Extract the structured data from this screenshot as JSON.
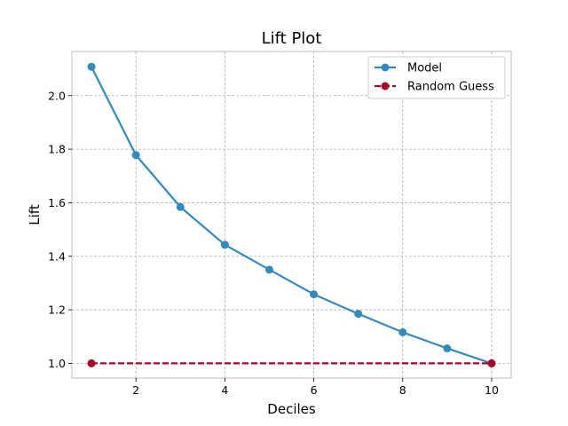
{
  "chart_data": {
    "type": "line",
    "title": "Lift Plot",
    "xlabel": "Deciles",
    "ylabel": "Lift",
    "xlim": [
      0.56,
      10.44
    ],
    "ylim": [
      0.945,
      2.165
    ],
    "xticks": [
      2,
      4,
      6,
      8,
      10
    ],
    "yticks": [
      1.0,
      1.2,
      1.4,
      1.6,
      1.8,
      2.0
    ],
    "grid": true,
    "legend_position": "top-right",
    "x": [
      1,
      2,
      3,
      4,
      5,
      6,
      7,
      8,
      9,
      10
    ],
    "series": [
      {
        "name": "Model",
        "color": "#348abd",
        "linestyle": "solid",
        "marker": "circle",
        "values": [
          2.108,
          1.778,
          1.584,
          1.443,
          1.35,
          1.258,
          1.185,
          1.116,
          1.056,
          1.0
        ]
      },
      {
        "name": "Random Guess",
        "color": "#a60628",
        "linestyle": "dashed",
        "marker": "circle",
        "x": [
          1,
          10
        ],
        "values": [
          1.0,
          1.0
        ]
      }
    ]
  }
}
